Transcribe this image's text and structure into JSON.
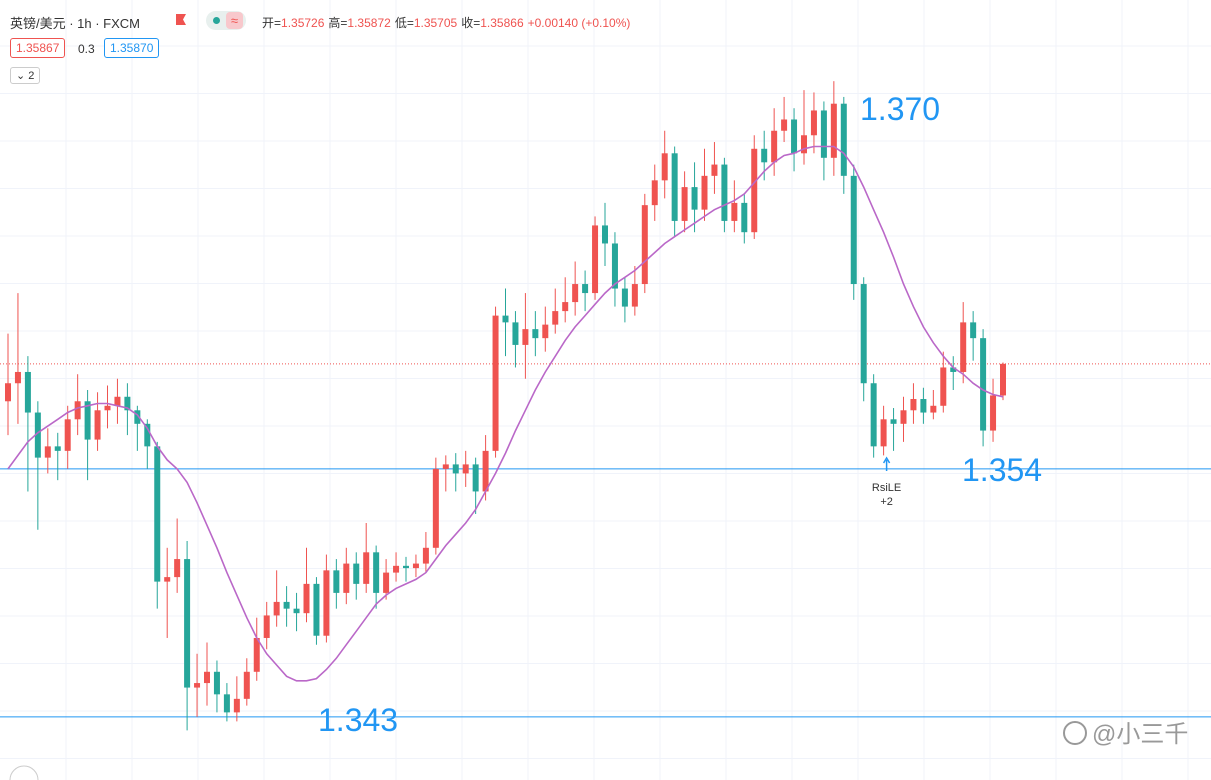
{
  "chart_data": {
    "type": "candlestick",
    "title": "英镑/美元 · 1h · FXCM",
    "ohlc_legend": [
      "开=",
      "1.35726",
      "高=",
      "1.35872",
      "低=",
      "1.35705",
      "收=",
      "1.35866",
      "+0.00140 (+0.10%)"
    ],
    "bid": "1.35867",
    "spread": "0.3",
    "ask": "1.35870",
    "indicator_count": "2",
    "up_color": "#ef5350",
    "down_color": "#26a69a",
    "ylim": [
      1.3402,
      1.3748
    ],
    "open": [
      1.357,
      1.3578,
      1.3583,
      1.3565,
      1.3545,
      1.355,
      1.3548,
      1.3562,
      1.357,
      1.3553,
      1.3566,
      1.3568,
      1.3572,
      1.3566,
      1.356,
      1.355,
      1.349,
      1.3492,
      1.35,
      1.3443,
      1.3445,
      1.345,
      1.344,
      1.3432,
      1.3438,
      1.345,
      1.3465,
      1.3475,
      1.3481,
      1.3478,
      1.3476,
      1.3489,
      1.3466,
      1.3495,
      1.3485,
      1.3498,
      1.3489,
      1.3503,
      1.3485,
      1.3494,
      1.3497,
      1.3496,
      1.3498,
      1.3505,
      1.354,
      1.3542,
      1.3538,
      1.3542,
      1.353,
      1.3548,
      1.3608,
      1.3605,
      1.3595,
      1.3602,
      1.3598,
      1.3604,
      1.361,
      1.3614,
      1.3622,
      1.3618,
      1.3648,
      1.364,
      1.362,
      1.3612,
      1.3622,
      1.3657,
      1.3668,
      1.368,
      1.365,
      1.3665,
      1.3655,
      1.367,
      1.3675,
      1.365,
      1.3658,
      1.3645,
      1.3682,
      1.3676,
      1.369,
      1.3695,
      1.368,
      1.3688,
      1.3699,
      1.3678,
      1.3702,
      1.367,
      1.3622,
      1.3578,
      1.355,
      1.3562,
      1.356,
      1.3566,
      1.3571,
      1.3565,
      1.3568,
      1.3585,
      1.3583,
      1.3605,
      1.3598,
      1.3557,
      1.35726
    ],
    "high": [
      1.36,
      1.3618,
      1.359,
      1.357,
      1.3558,
      1.3556,
      1.3568,
      1.3582,
      1.3575,
      1.3574,
      1.3577,
      1.358,
      1.3578,
      1.3568,
      1.3562,
      1.3552,
      1.3505,
      1.3518,
      1.3508,
      1.3458,
      1.3463,
      1.3455,
      1.3445,
      1.3448,
      1.3456,
      1.3474,
      1.3481,
      1.3495,
      1.3488,
      1.3485,
      1.3505,
      1.3492,
      1.3502,
      1.35,
      1.3505,
      1.3503,
      1.3516,
      1.3506,
      1.35,
      1.3503,
      1.3501,
      1.3502,
      1.3512,
      1.3545,
      1.3546,
      1.3547,
      1.3548,
      1.3545,
      1.3555,
      1.3612,
      1.362,
      1.361,
      1.3618,
      1.361,
      1.3612,
      1.362,
      1.3625,
      1.3632,
      1.3628,
      1.3652,
      1.3658,
      1.3645,
      1.3625,
      1.363,
      1.3662,
      1.3675,
      1.369,
      1.3683,
      1.3672,
      1.3676,
      1.3682,
      1.3685,
      1.3678,
      1.3668,
      1.3662,
      1.3688,
      1.369,
      1.37,
      1.3705,
      1.37,
      1.3708,
      1.3707,
      1.3703,
      1.3712,
      1.3705,
      1.3675,
      1.3625,
      1.3582,
      1.3568,
      1.3567,
      1.3572,
      1.3578,
      1.3576,
      1.3575,
      1.3592,
      1.359,
      1.3614,
      1.361,
      1.3602,
      1.358,
      1.35872
    ],
    "low": [
      1.3555,
      1.356,
      1.353,
      1.3513,
      1.3538,
      1.3535,
      1.354,
      1.3555,
      1.3535,
      1.3548,
      1.3558,
      1.356,
      1.3555,
      1.3548,
      1.354,
      1.3478,
      1.3465,
      1.3485,
      1.3424,
      1.343,
      1.3435,
      1.3432,
      1.3428,
      1.3428,
      1.3435,
      1.3446,
      1.346,
      1.347,
      1.347,
      1.3468,
      1.3472,
      1.3462,
      1.3463,
      1.3478,
      1.348,
      1.3482,
      1.3485,
      1.3478,
      1.3482,
      1.349,
      1.349,
      1.3492,
      1.3494,
      1.3502,
      1.353,
      1.353,
      1.3532,
      1.352,
      1.3526,
      1.3545,
      1.359,
      1.3585,
      1.358,
      1.359,
      1.3592,
      1.36,
      1.3605,
      1.3608,
      1.361,
      1.3615,
      1.363,
      1.3612,
      1.3605,
      1.3608,
      1.3618,
      1.365,
      1.366,
      1.3643,
      1.3645,
      1.3645,
      1.365,
      1.3662,
      1.3645,
      1.3645,
      1.364,
      1.3642,
      1.3668,
      1.367,
      1.3685,
      1.3672,
      1.3675,
      1.368,
      1.3668,
      1.367,
      1.3662,
      1.3615,
      1.357,
      1.3545,
      1.3546,
      1.3548,
      1.3552,
      1.356,
      1.356,
      1.3562,
      1.3565,
      1.3575,
      1.3578,
      1.3588,
      1.355,
      1.3552,
      1.35705
    ],
    "close": [
      1.3578,
      1.3583,
      1.3565,
      1.3545,
      1.355,
      1.3548,
      1.3562,
      1.357,
      1.3553,
      1.3566,
      1.3568,
      1.3572,
      1.3566,
      1.356,
      1.355,
      1.349,
      1.3492,
      1.35,
      1.3443,
      1.3445,
      1.345,
      1.344,
      1.3432,
      1.3438,
      1.345,
      1.3465,
      1.3475,
      1.3481,
      1.3478,
      1.3476,
      1.3489,
      1.3466,
      1.3495,
      1.3485,
      1.3498,
      1.3489,
      1.3503,
      1.3485,
      1.3494,
      1.3497,
      1.3496,
      1.3498,
      1.3505,
      1.354,
      1.3542,
      1.3538,
      1.3542,
      1.353,
      1.3548,
      1.3608,
      1.3605,
      1.3595,
      1.3602,
      1.3598,
      1.3604,
      1.361,
      1.3614,
      1.3622,
      1.3618,
      1.3648,
      1.364,
      1.362,
      1.3612,
      1.3622,
      1.3657,
      1.3668,
      1.368,
      1.365,
      1.3665,
      1.3655,
      1.367,
      1.3675,
      1.365,
      1.3658,
      1.3645,
      1.3682,
      1.3676,
      1.369,
      1.3695,
      1.368,
      1.3688,
      1.3699,
      1.3678,
      1.3702,
      1.367,
      1.3622,
      1.3578,
      1.355,
      1.3562,
      1.356,
      1.3566,
      1.3571,
      1.3565,
      1.3568,
      1.3585,
      1.3583,
      1.3605,
      1.3598,
      1.3557,
      1.35726,
      1.35866
    ],
    "ma": {
      "color": "#ba68c8",
      "values": [
        1.354,
        1.3546,
        1.3552,
        1.3556,
        1.3559,
        1.3562,
        1.3565,
        1.3567,
        1.3568,
        1.3569,
        1.3569,
        1.3568,
        1.3567,
        1.3564,
        1.3558,
        1.355,
        1.3544,
        1.354,
        1.3534,
        1.3525,
        1.3515,
        1.3505,
        1.3494,
        1.3484,
        1.3474,
        1.3465,
        1.3458,
        1.3453,
        1.3448,
        1.3446,
        1.3446,
        1.3447,
        1.3451,
        1.3456,
        1.3462,
        1.3468,
        1.3474,
        1.348,
        1.3484,
        1.3487,
        1.3489,
        1.3491,
        1.3494,
        1.35,
        1.3506,
        1.3511,
        1.3516,
        1.3522,
        1.353,
        1.3538,
        1.3547,
        1.3557,
        1.3566,
        1.3575,
        1.3583,
        1.359,
        1.3597,
        1.3603,
        1.3608,
        1.3613,
        1.3618,
        1.3622,
        1.3625,
        1.3628,
        1.3632,
        1.3636,
        1.364,
        1.3643,
        1.3646,
        1.3649,
        1.3652,
        1.3655,
        1.3657,
        1.3659,
        1.3662,
        1.3667,
        1.3672,
        1.3676,
        1.3679,
        1.368,
        1.3682,
        1.3683,
        1.3683,
        1.3683,
        1.368,
        1.3674,
        1.3665,
        1.3655,
        1.3645,
        1.3634,
        1.3622,
        1.3612,
        1.3603,
        1.3596,
        1.359,
        1.3585,
        1.3582,
        1.3578,
        1.3575,
        1.3573,
        1.3572
      ]
    },
    "levels": [
      1.354,
      1.343
    ],
    "level_color": "#2196f3",
    "peak_label": {
      "value": 1.37,
      "label": "1.370"
    },
    "signal": {
      "name": "RsiLE",
      "qty": "+2"
    },
    "watermark": "@小三千"
  }
}
